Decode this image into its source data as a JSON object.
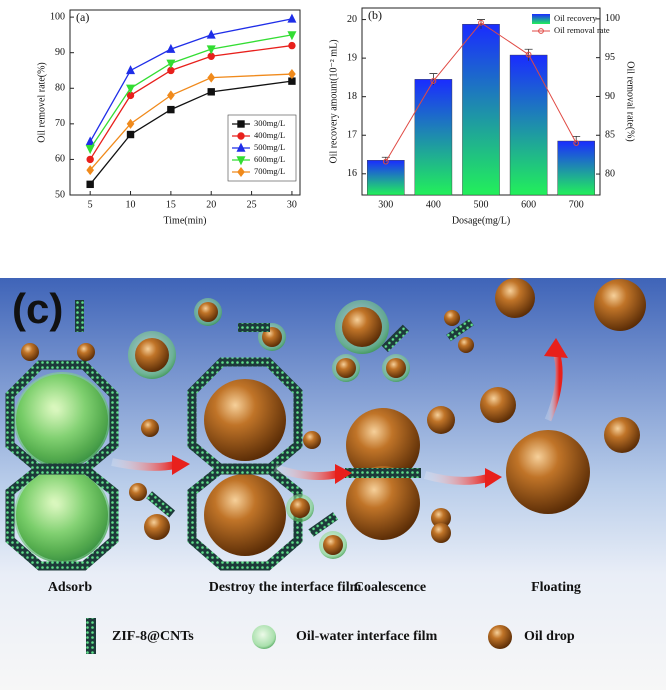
{
  "chart_data": [
    {
      "type": "line",
      "label": "(a)",
      "y_label": "Oil removel rate(%)",
      "x_label": "Time(min)",
      "x": [
        5,
        10,
        15,
        20,
        30
      ],
      "xlim": [
        2.5,
        31
      ],
      "xticks": [
        5,
        10,
        15,
        20,
        25,
        30
      ],
      "ylim": [
        50,
        102
      ],
      "yticks": [
        50,
        60,
        70,
        80,
        90,
        100
      ],
      "legend": "lower right",
      "series": [
        {
          "name": "300mg/L",
          "color": "#111111",
          "marker": "square",
          "values": [
            53,
            67,
            74,
            79,
            82
          ]
        },
        {
          "name": "400mg/L",
          "color": "#e8201c",
          "marker": "circle",
          "values": [
            60,
            78,
            85,
            89,
            92
          ]
        },
        {
          "name": "500mg/L",
          "color": "#1f2ee8",
          "marker": "triangle-up",
          "values": [
            65,
            85,
            91,
            95,
            99.5
          ]
        },
        {
          "name": "600mg/L",
          "color": "#33dd33",
          "marker": "triangle-down",
          "values": [
            63,
            80,
            87,
            91,
            95
          ]
        },
        {
          "name": "700mg/L",
          "color": "#f08a1c",
          "marker": "diamond",
          "values": [
            57,
            70,
            78,
            83,
            84
          ]
        }
      ]
    },
    {
      "type": "bar",
      "label": "(b)",
      "y_label": "Oil recovery amount(10⁻² mL)",
      "y2_label": "Oil removal rate(%)",
      "x_label": "Dosage(mg/L)",
      "categories": [
        "300",
        "400",
        "500",
        "600",
        "700"
      ],
      "ylim": [
        15.45,
        20.3
      ],
      "yticks": [
        16,
        17,
        18,
        19,
        20
      ],
      "y2lim": [
        77.3,
        101.4
      ],
      "y2ticks": [
        80,
        85,
        90,
        95,
        100
      ],
      "legend": "upper right",
      "series": [
        {
          "name": "Oil recovery",
          "type": "bar",
          "gradient": [
            "#1a2cff",
            "#22f05a"
          ],
          "values": [
            16.35,
            18.45,
            19.88,
            19.08,
            16.85
          ],
          "errors": [
            0.08,
            0.15,
            0.12,
            0.15,
            0.12
          ]
        },
        {
          "name": "Oil removal rate",
          "type": "line",
          "axis": "y2",
          "color": "#e04a44",
          "values": [
            81.6,
            92,
            99.5,
            95.4,
            84
          ]
        }
      ]
    }
  ],
  "diagram": {
    "label": "(c)",
    "stages": [
      "Adsorb",
      "Destroy the interface film",
      "Coalescence",
      "Floating"
    ],
    "legend": [
      "ZIF-8@CNTs",
      "Oil-water interface film",
      "Oil drop"
    ]
  }
}
